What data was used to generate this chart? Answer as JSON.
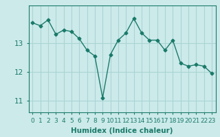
{
  "x": [
    0,
    1,
    2,
    3,
    4,
    5,
    6,
    7,
    8,
    9,
    10,
    11,
    12,
    13,
    14,
    15,
    16,
    17,
    18,
    19,
    20,
    21,
    22,
    23
  ],
  "y": [
    13.7,
    13.6,
    13.8,
    13.3,
    13.45,
    13.4,
    13.15,
    12.75,
    12.55,
    11.1,
    12.6,
    13.1,
    13.35,
    13.85,
    13.35,
    13.1,
    13.1,
    12.75,
    13.1,
    12.3,
    12.2,
    12.25,
    12.2,
    11.95
  ],
  "line_color": "#1a7a6a",
  "marker": "D",
  "markersize": 2.5,
  "linewidth": 1.0,
  "background_color": "#cceaea",
  "grid_color": "#aad4d4",
  "xlabel": "Humidex (Indice chaleur)",
  "xlabel_fontsize": 7.5,
  "yticks": [
    11,
    12,
    13
  ],
  "ylim": [
    10.6,
    14.3
  ],
  "xlim": [
    -0.5,
    23.5
  ],
  "xtick_labels": [
    "0",
    "1",
    "2",
    "3",
    "4",
    "5",
    "6",
    "7",
    "8",
    "9",
    "10",
    "11",
    "12",
    "13",
    "14",
    "15",
    "16",
    "17",
    "18",
    "19",
    "20",
    "21",
    "22",
    "23"
  ],
  "tick_fontsize": 6.5,
  "ytick_fontsize": 7.5
}
